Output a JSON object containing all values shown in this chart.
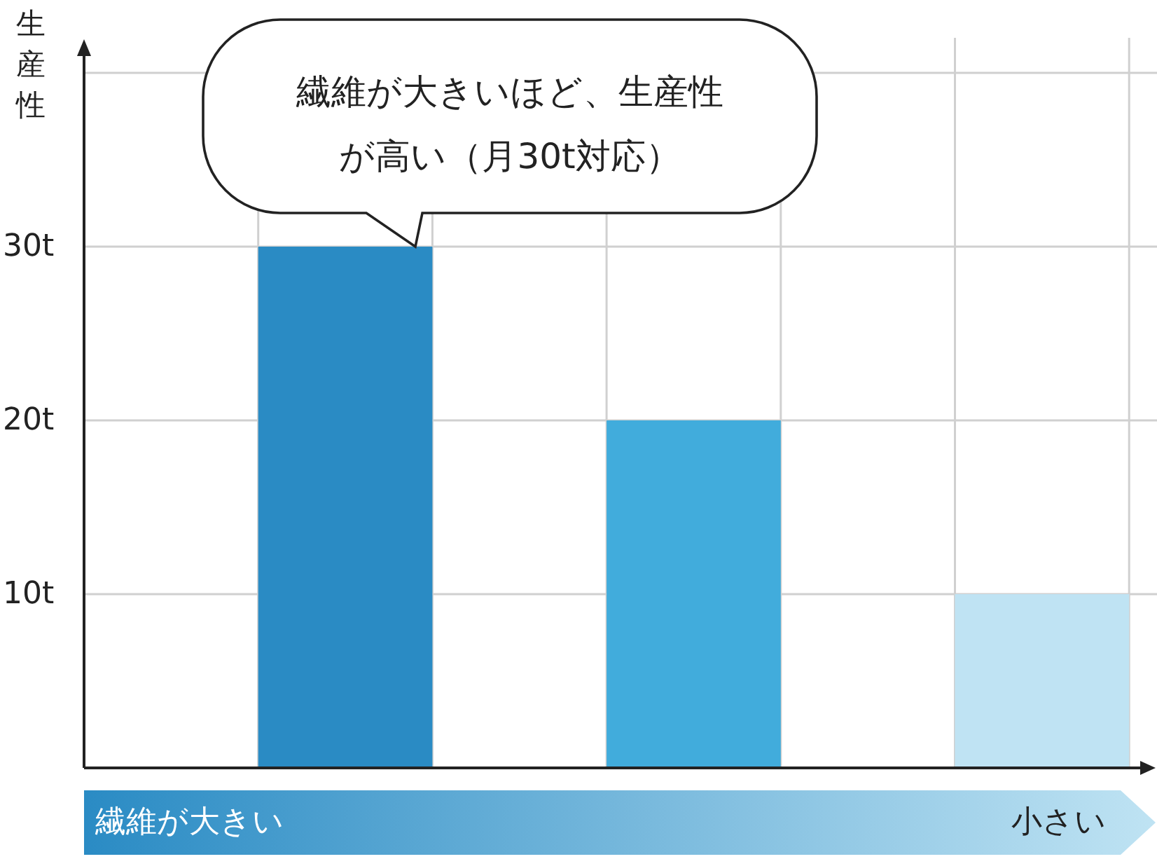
{
  "chart_data": {
    "type": "bar",
    "ylabel": "生産性",
    "xlabel": "繊維が大きい",
    "categories": [
      null,
      null,
      null
    ],
    "values": [
      30,
      20,
      10
    ],
    "colors": [
      "#2a8bc4",
      "#41acdc",
      "#bfe3f3"
    ],
    "ylim": [
      0,
      40
    ],
    "yticks": [
      {
        "value": 10,
        "label": "10t"
      },
      {
        "value": 20,
        "label": "20t"
      },
      {
        "value": 30,
        "label": "30t"
      },
      {
        "value": 40,
        "label": null
      }
    ],
    "grid": true,
    "annotations": [
      "繊維が大きいほど、生産性が高い（月30t対応）",
      "小さい"
    ]
  }
}
